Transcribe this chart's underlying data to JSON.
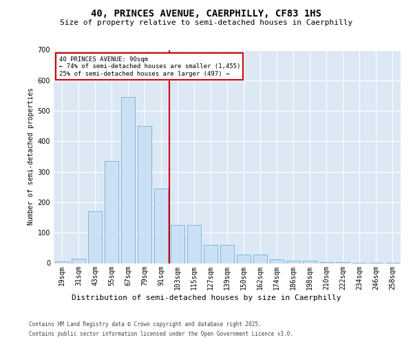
{
  "title1": "40, PRINCES AVENUE, CAERPHILLY, CF83 1HS",
  "title2": "Size of property relative to semi-detached houses in Caerphilly",
  "xlabel": "Distribution of semi-detached houses by size in Caerphilly",
  "ylabel": "Number of semi-detached properties",
  "categories": [
    "19sqm",
    "31sqm",
    "43sqm",
    "55sqm",
    "67sqm",
    "79sqm",
    "91sqm",
    "103sqm",
    "115sqm",
    "127sqm",
    "139sqm",
    "150sqm",
    "162sqm",
    "174sqm",
    "186sqm",
    "198sqm",
    "210sqm",
    "222sqm",
    "234sqm",
    "246sqm",
    "258sqm"
  ],
  "values": [
    5,
    15,
    170,
    335,
    545,
    450,
    245,
    125,
    125,
    60,
    60,
    28,
    28,
    13,
    8,
    8,
    3,
    3,
    2,
    2,
    1
  ],
  "bar_color": "#cce0f5",
  "bar_edge_color": "#7ab8d9",
  "vline_color": "#cc0000",
  "annotation_title": "40 PRINCES AVENUE: 90sqm",
  "annotation_line1": "← 74% of semi-detached houses are smaller (1,455)",
  "annotation_line2": "25% of semi-detached houses are larger (497) →",
  "annotation_box_color": "#ffffff",
  "annotation_box_edge": "#cc0000",
  "footer1": "Contains HM Land Registry data © Crown copyright and database right 2025.",
  "footer2": "Contains public sector information licensed under the Open Government Licence v3.0.",
  "ylim": [
    0,
    700
  ],
  "yticks": [
    0,
    100,
    200,
    300,
    400,
    500,
    600,
    700
  ],
  "fig_bg": "#ffffff",
  "plot_bg": "#dde8f5",
  "grid_color": "#ffffff",
  "title1_fontsize": 10,
  "title2_fontsize": 8,
  "ylabel_fontsize": 7,
  "xlabel_fontsize": 8,
  "tick_fontsize": 7,
  "footer_fontsize": 5.5
}
